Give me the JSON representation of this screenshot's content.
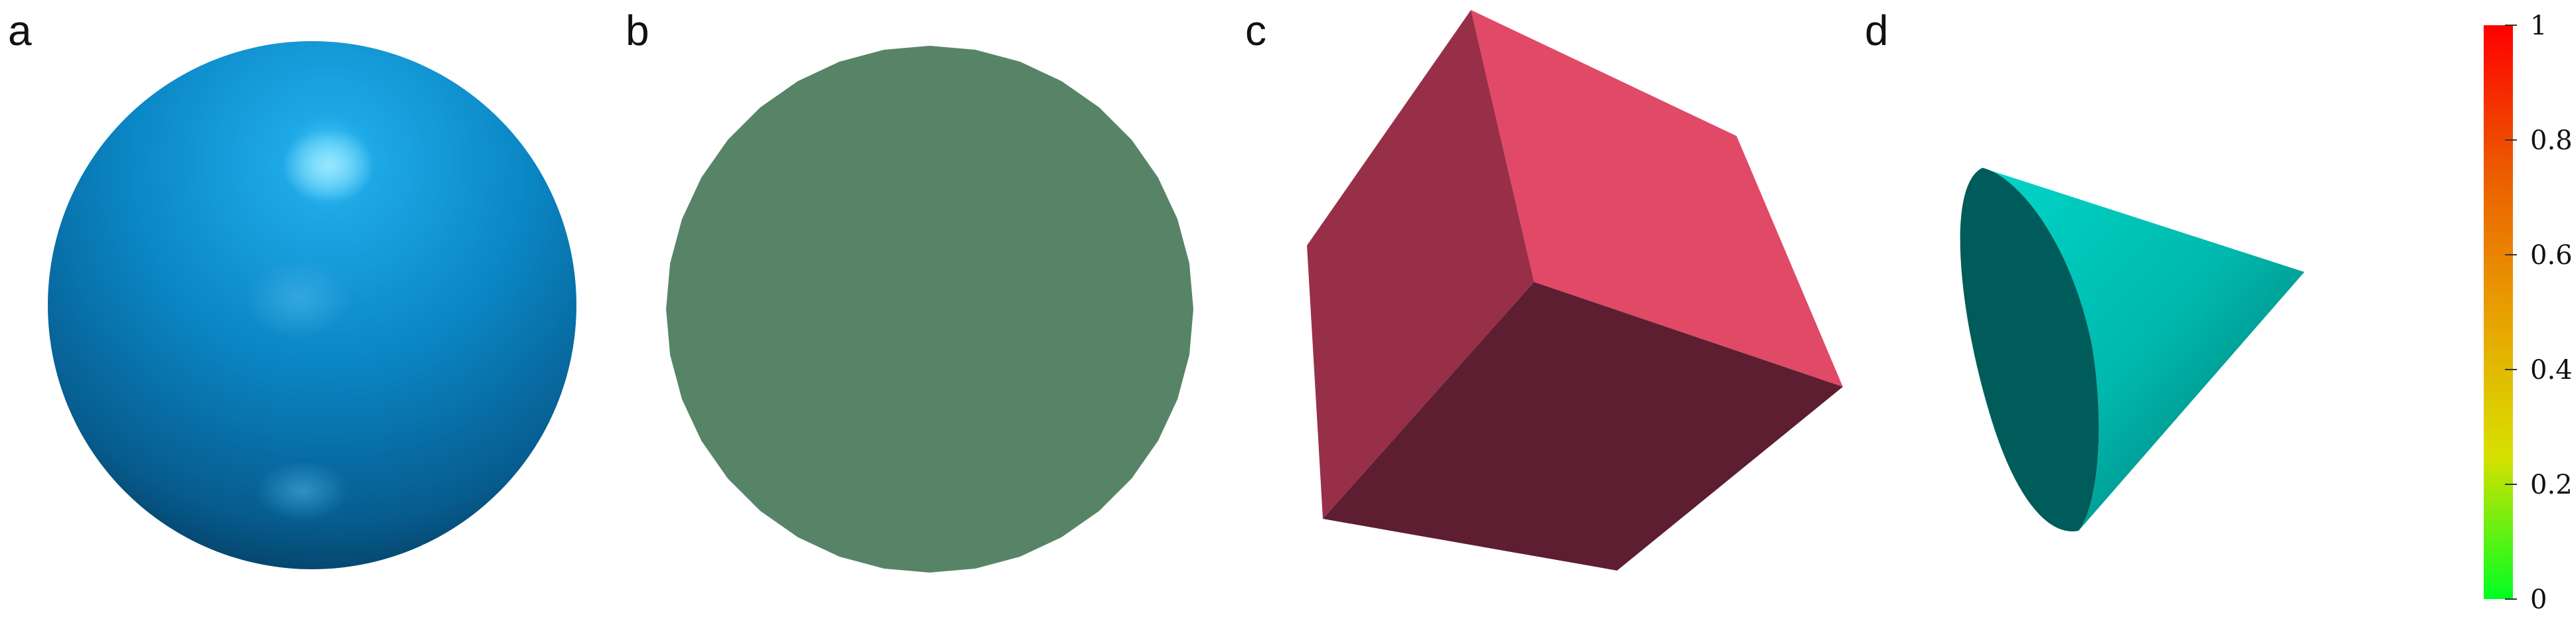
{
  "panels": [
    {
      "label": "a",
      "shape": "sphere",
      "color": "#0a86c4"
    },
    {
      "label": "b",
      "shape": "polygon-disc",
      "color": "#578467"
    },
    {
      "label": "c",
      "shape": "cube",
      "color": "#e04a67"
    },
    {
      "label": "d",
      "shape": "cone",
      "color": "#00c8bf"
    }
  ],
  "colorbar": {
    "ticks": [
      "0",
      "0.2",
      "0.4",
      "0.6",
      "0.8",
      "1"
    ],
    "gradient": [
      "#00ff22",
      "#d8e000",
      "#e8a000",
      "#ec5a00",
      "#ff0000"
    ]
  }
}
